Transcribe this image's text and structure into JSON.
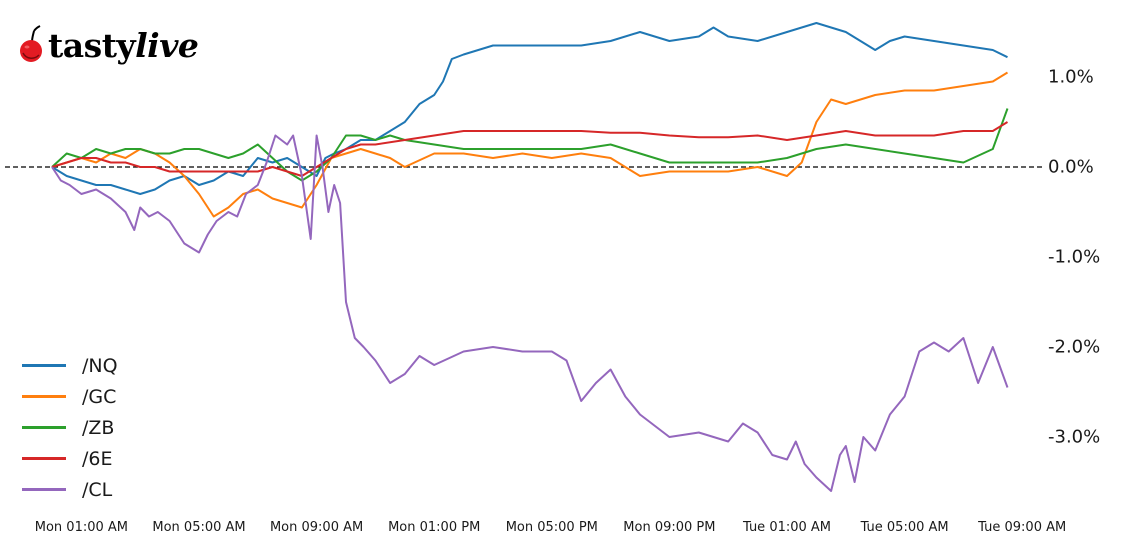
{
  "brand": {
    "logo_name_part1": "tasty",
    "logo_name_part2": "live",
    "cherry_color": "#e31b23"
  },
  "chart_data": {
    "type": "line",
    "title": "",
    "xlabel": "",
    "ylabel": "",
    "y_unit": "%",
    "ylim": [
      -3.7,
      1.85
    ],
    "yticks": [
      {
        "value": 1.0,
        "label": "1.0%"
      },
      {
        "value": 0.0,
        "label": "0.0%"
      },
      {
        "value": -1.0,
        "label": "-1.0%"
      },
      {
        "value": -2.0,
        "label": "-2.0%"
      },
      {
        "value": -3.0,
        "label": "-3.0%"
      }
    ],
    "xticks": [
      {
        "hour": 1,
        "label": "Mon 01:00 AM"
      },
      {
        "hour": 5,
        "label": "Mon 05:00 AM"
      },
      {
        "hour": 9,
        "label": "Mon 09:00 AM"
      },
      {
        "hour": 13,
        "label": "Mon 01:00 PM"
      },
      {
        "hour": 17,
        "label": "Mon 05:00 PM"
      },
      {
        "hour": 21,
        "label": "Mon 09:00 PM"
      },
      {
        "hour": 25,
        "label": "Tue 01:00 AM"
      },
      {
        "hour": 29,
        "label": "Tue 05:00 AM"
      },
      {
        "hour": 33,
        "label": "Tue 09:00 AM"
      }
    ],
    "x_unit": "hours since Mon 00:00",
    "zero_line": {
      "value": 0.0,
      "style": "dashed",
      "color": "#000000"
    },
    "grid": false,
    "legend_position": "lower left",
    "series": [
      {
        "name": "/NQ",
        "color": "#1f77b4",
        "x": [
          0,
          0.5,
          1,
          1.5,
          2,
          2.5,
          3,
          3.5,
          4,
          4.5,
          5,
          5.5,
          6,
          6.5,
          7,
          7.5,
          8,
          8.5,
          9,
          9.3,
          9.6,
          10,
          10.5,
          11,
          11.5,
          12,
          12.5,
          13,
          13.3,
          13.6,
          14,
          14.5,
          15,
          16,
          17,
          18,
          19,
          20,
          20.5,
          21,
          22,
          22.5,
          23,
          24,
          25,
          26,
          27,
          27.5,
          28,
          28.5,
          29,
          30,
          31,
          32,
          32.5
        ],
        "values": [
          0.0,
          -0.1,
          -0.15,
          -0.2,
          -0.2,
          -0.25,
          -0.3,
          -0.25,
          -0.15,
          -0.1,
          -0.2,
          -0.15,
          -0.05,
          -0.1,
          0.1,
          0.05,
          0.1,
          0.0,
          -0.1,
          0.1,
          0.15,
          0.2,
          0.3,
          0.3,
          0.4,
          0.5,
          0.7,
          0.8,
          0.95,
          1.2,
          1.25,
          1.3,
          1.35,
          1.35,
          1.35,
          1.35,
          1.4,
          1.5,
          1.45,
          1.4,
          1.45,
          1.55,
          1.45,
          1.4,
          1.5,
          1.6,
          1.5,
          1.4,
          1.3,
          1.4,
          1.45,
          1.4,
          1.35,
          1.3,
          1.22
        ]
      },
      {
        "name": "/GC",
        "color": "#ff7f0e",
        "x": [
          0,
          0.5,
          1,
          1.5,
          2,
          2.5,
          3,
          3.5,
          4,
          4.5,
          5,
          5.5,
          6,
          6.5,
          7,
          7.5,
          8,
          8.5,
          9,
          9.5,
          10,
          10.5,
          11,
          11.5,
          12,
          13,
          14,
          15,
          16,
          17,
          18,
          19,
          20,
          21,
          22,
          23,
          24,
          25,
          25.5,
          26,
          26.5,
          27,
          28,
          29,
          30,
          31,
          32,
          32.5
        ],
        "values": [
          0.0,
          0.05,
          0.1,
          0.05,
          0.15,
          0.1,
          0.2,
          0.15,
          0.05,
          -0.1,
          -0.3,
          -0.55,
          -0.45,
          -0.3,
          -0.25,
          -0.35,
          -0.4,
          -0.45,
          -0.2,
          0.1,
          0.15,
          0.2,
          0.15,
          0.1,
          0.0,
          0.15,
          0.15,
          0.1,
          0.15,
          0.1,
          0.15,
          0.1,
          -0.1,
          -0.05,
          -0.05,
          -0.05,
          0.0,
          -0.1,
          0.05,
          0.5,
          0.75,
          0.7,
          0.8,
          0.85,
          0.85,
          0.9,
          0.95,
          1.05
        ]
      },
      {
        "name": "/ZB",
        "color": "#2ca02c",
        "x": [
          0,
          0.5,
          1,
          1.5,
          2,
          2.5,
          3,
          3.5,
          4,
          4.5,
          5,
          5.5,
          6,
          6.5,
          7,
          7.5,
          8,
          8.5,
          9,
          9.5,
          10,
          10.5,
          11,
          11.5,
          12,
          13,
          14,
          15,
          16,
          17,
          18,
          19,
          20,
          21,
          22,
          23,
          24,
          25,
          26,
          27,
          28,
          29,
          30,
          31,
          32,
          32.5
        ],
        "values": [
          0.0,
          0.15,
          0.1,
          0.2,
          0.15,
          0.2,
          0.2,
          0.15,
          0.15,
          0.2,
          0.2,
          0.15,
          0.1,
          0.15,
          0.25,
          0.1,
          -0.05,
          -0.15,
          -0.05,
          0.1,
          0.35,
          0.35,
          0.3,
          0.35,
          0.3,
          0.25,
          0.2,
          0.2,
          0.2,
          0.2,
          0.2,
          0.25,
          0.15,
          0.05,
          0.05,
          0.05,
          0.05,
          0.1,
          0.2,
          0.25,
          0.2,
          0.15,
          0.1,
          0.05,
          0.2,
          0.65
        ]
      },
      {
        "name": "/6E",
        "color": "#d62728",
        "x": [
          0,
          0.5,
          1,
          1.5,
          2,
          2.5,
          3,
          3.5,
          4,
          4.5,
          5,
          5.5,
          6,
          6.5,
          7,
          7.5,
          8,
          8.5,
          9,
          9.5,
          10,
          10.5,
          11,
          12,
          13,
          14,
          15,
          16,
          17,
          18,
          19,
          20,
          21,
          22,
          23,
          24,
          25,
          26,
          27,
          28,
          29,
          30,
          31,
          32,
          32.5
        ],
        "values": [
          0.0,
          0.05,
          0.1,
          0.1,
          0.05,
          0.05,
          0.0,
          0.0,
          -0.05,
          -0.05,
          -0.05,
          -0.05,
          -0.05,
          -0.05,
          -0.05,
          0.0,
          -0.05,
          -0.1,
          0.0,
          0.1,
          0.2,
          0.25,
          0.25,
          0.3,
          0.35,
          0.4,
          0.4,
          0.4,
          0.4,
          0.4,
          0.38,
          0.38,
          0.35,
          0.33,
          0.33,
          0.35,
          0.3,
          0.35,
          0.4,
          0.35,
          0.35,
          0.35,
          0.4,
          0.4,
          0.5
        ]
      },
      {
        "name": "/CL",
        "color": "#9467bd",
        "x": [
          0,
          0.3,
          0.6,
          1,
          1.5,
          2,
          2.5,
          2.8,
          3,
          3.3,
          3.6,
          4,
          4.5,
          5,
          5.3,
          5.6,
          6,
          6.3,
          6.6,
          7,
          7.3,
          7.6,
          8,
          8.2,
          8.5,
          8.8,
          9,
          9.2,
          9.4,
          9.6,
          9.8,
          10,
          10.3,
          10.6,
          11,
          11.5,
          12,
          12.5,
          13,
          14,
          15,
          16,
          17,
          17.5,
          18,
          18.5,
          19,
          19.5,
          20,
          21,
          22,
          23,
          23.5,
          24,
          24.5,
          25,
          25.3,
          25.6,
          26,
          26.5,
          26.8,
          27,
          27.3,
          27.6,
          28,
          28.5,
          29,
          29.5,
          30,
          30.5,
          31,
          31.5,
          32,
          32.5
        ],
        "values": [
          0.0,
          -0.15,
          -0.2,
          -0.3,
          -0.25,
          -0.35,
          -0.5,
          -0.7,
          -0.45,
          -0.55,
          -0.5,
          -0.6,
          -0.85,
          -0.95,
          -0.75,
          -0.6,
          -0.5,
          -0.55,
          -0.3,
          -0.2,
          0.05,
          0.35,
          0.25,
          0.35,
          -0.1,
          -0.8,
          0.35,
          0.0,
          -0.5,
          -0.2,
          -0.4,
          -1.5,
          -1.9,
          -2.0,
          -2.15,
          -2.4,
          -2.3,
          -2.1,
          -2.2,
          -2.05,
          -2.0,
          -2.05,
          -2.05,
          -2.15,
          -2.6,
          -2.4,
          -2.25,
          -2.55,
          -2.75,
          -3.0,
          -2.95,
          -3.05,
          -2.85,
          -2.95,
          -3.2,
          -3.25,
          -3.05,
          -3.3,
          -3.45,
          -3.6,
          -3.2,
          -3.1,
          -3.5,
          -3.0,
          -3.15,
          -2.75,
          -2.55,
          -2.05,
          -1.95,
          -2.05,
          -1.9,
          -2.4,
          -2.0,
          -2.45
        ]
      }
    ]
  },
  "legend": {
    "items": [
      {
        "label": "/NQ",
        "color": "#1f77b4"
      },
      {
        "label": "/GC",
        "color": "#ff7f0e"
      },
      {
        "label": "/ZB",
        "color": "#2ca02c"
      },
      {
        "label": "/6E",
        "color": "#d62728"
      },
      {
        "label": "/CL",
        "color": "#9467bd"
      }
    ]
  }
}
